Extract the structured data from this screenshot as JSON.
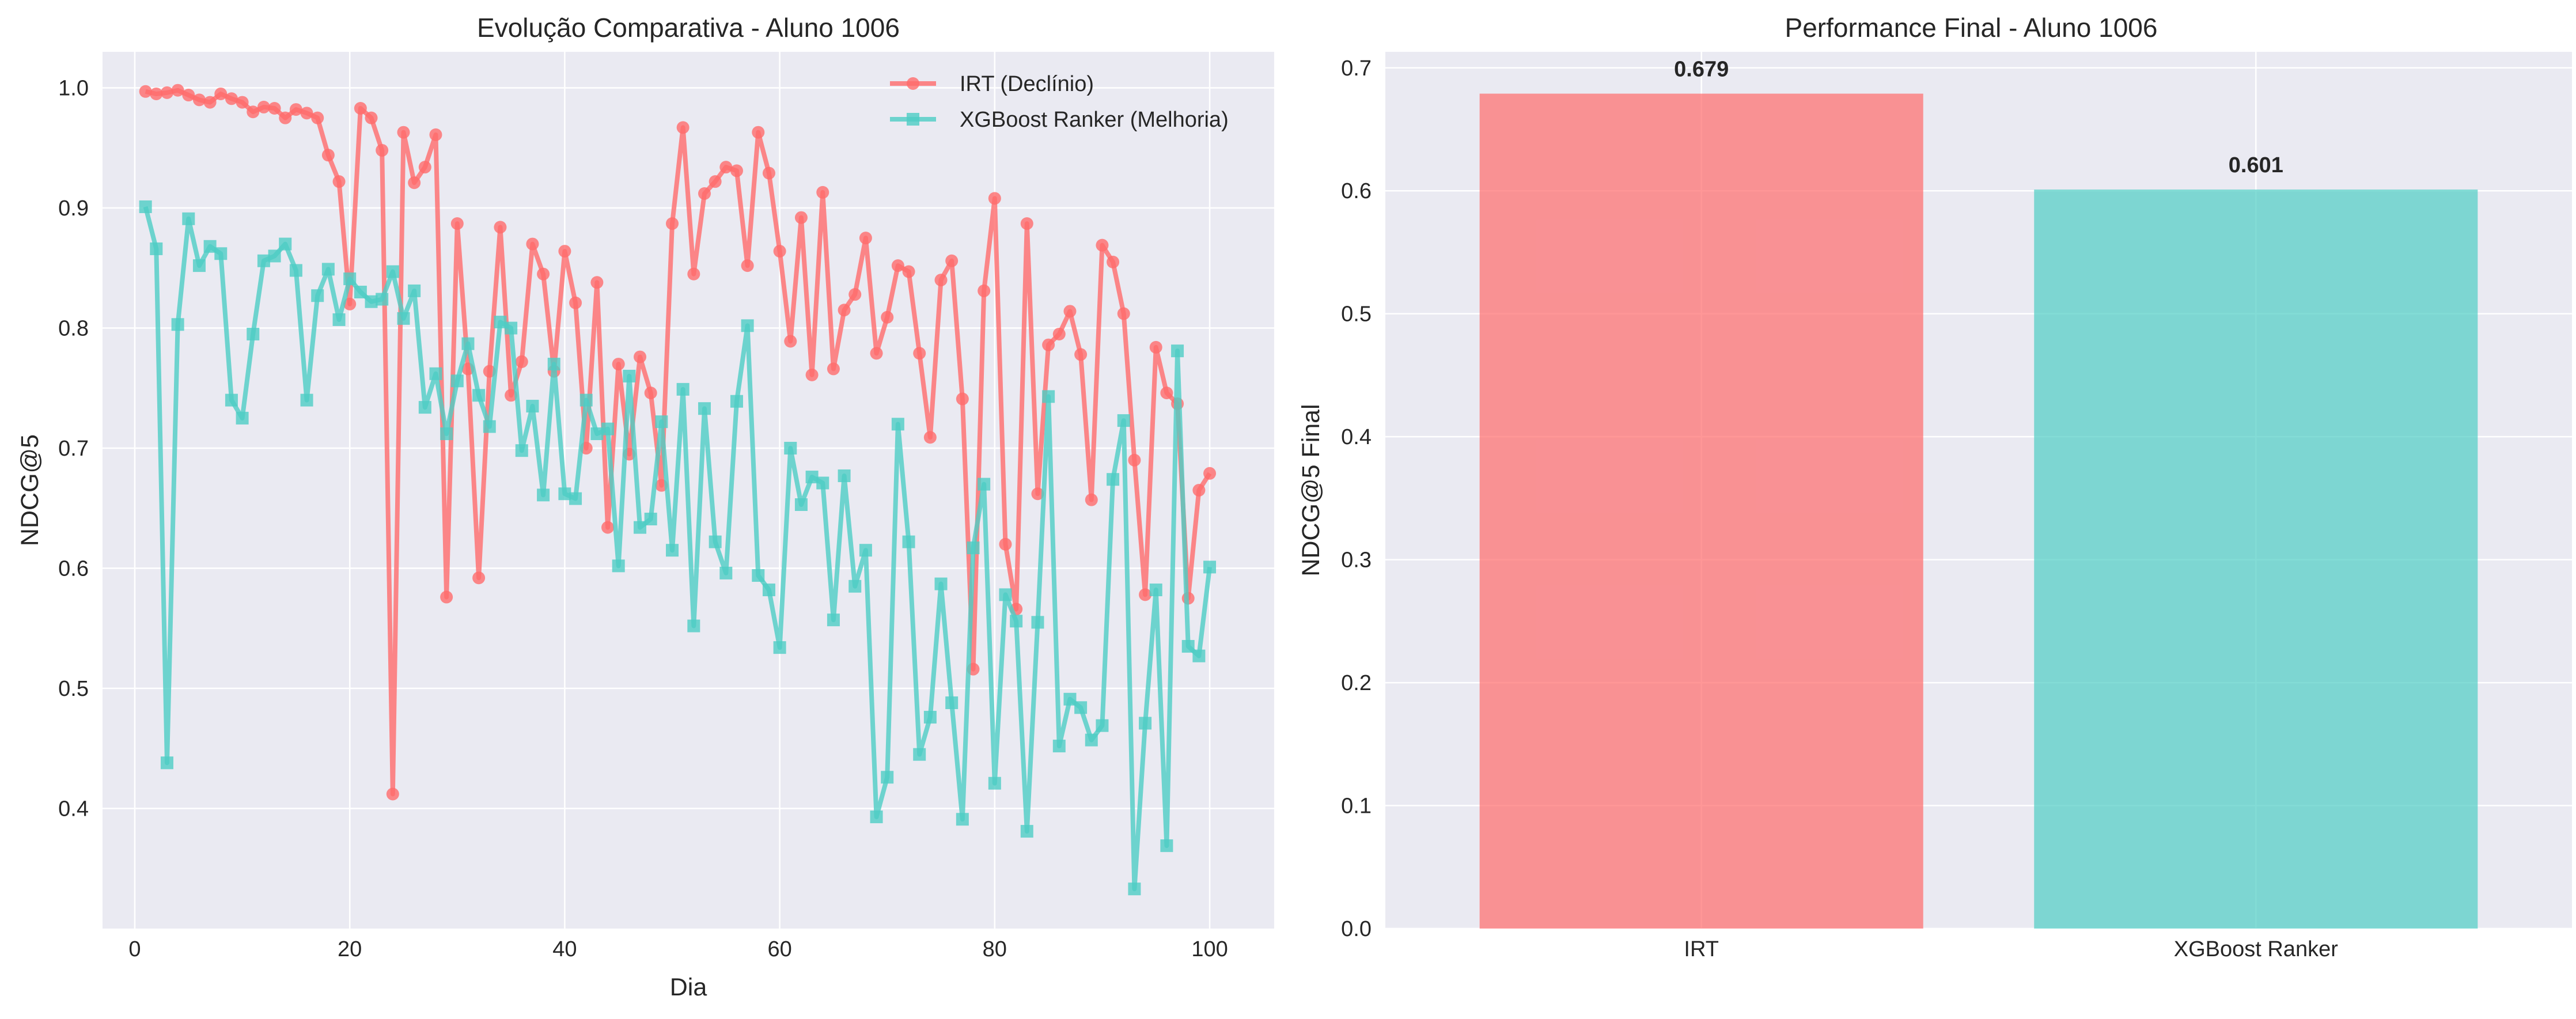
{
  "chart_data": [
    {
      "type": "line",
      "title": "Evolução Comparativa - Aluno 1006",
      "xlabel": "Dia",
      "ylabel": "NDCG@5",
      "xlim": [
        -3,
        106
      ],
      "ylim": [
        0.3,
        1.03
      ],
      "xticks": [
        0,
        20,
        40,
        60,
        80,
        100
      ],
      "yticks": [
        0.4,
        0.5,
        0.6,
        0.7,
        0.8,
        0.9,
        1.0
      ],
      "grid": true,
      "legend": "top-right",
      "x": [
        1,
        2,
        3,
        4,
        5,
        6,
        7,
        8,
        9,
        10,
        11,
        12,
        13,
        14,
        15,
        16,
        17,
        18,
        19,
        20,
        21,
        22,
        23,
        24,
        25,
        26,
        27,
        28,
        29,
        30,
        31,
        32,
        33,
        34,
        35,
        36,
        37,
        38,
        39,
        40,
        41,
        42,
        43,
        44,
        45,
        46,
        47,
        48,
        49,
        50,
        51,
        52,
        53,
        54,
        55,
        56,
        57,
        58,
        59,
        60,
        61,
        62,
        63,
        64,
        65,
        66,
        67,
        68,
        69,
        70,
        71,
        72,
        73,
        74,
        75,
        76,
        77,
        78,
        79,
        80,
        81,
        82,
        83,
        84,
        85,
        86,
        87,
        88,
        89,
        90,
        91,
        92,
        93,
        94,
        95,
        96,
        97,
        98,
        99,
        100
      ],
      "series": [
        {
          "name": "IRT (Declínio)",
          "color": "#FF6B6B",
          "marker": "circle",
          "values": [
            0.997,
            0.995,
            0.996,
            0.998,
            0.994,
            0.99,
            0.988,
            0.995,
            0.991,
            0.988,
            0.98,
            0.984,
            0.983,
            0.975,
            0.982,
            0.979,
            0.975,
            0.944,
            0.922,
            0.82,
            0.983,
            0.975,
            0.948,
            0.412,
            0.963,
            0.921,
            0.934,
            0.961,
            0.576,
            0.887,
            0.766,
            0.592,
            0.764,
            0.884,
            0.744,
            0.772,
            0.87,
            0.845,
            0.764,
            0.864,
            0.821,
            0.7,
            0.838,
            0.634,
            0.77,
            0.695,
            0.776,
            0.746,
            0.669,
            0.887,
            0.967,
            0.845,
            0.912,
            0.922,
            0.934,
            0.931,
            0.852,
            0.963,
            0.929,
            0.864,
            0.789,
            0.892,
            0.761,
            0.913,
            0.766,
            0.815,
            0.828,
            0.875,
            0.779,
            0.809,
            0.852,
            0.847,
            0.779,
            0.709,
            0.84,
            0.856,
            0.741,
            0.516,
            0.831,
            0.908,
            0.62,
            0.566,
            0.887,
            0.662,
            0.786,
            0.795,
            0.814,
            0.778,
            0.657,
            0.869,
            0.855,
            0.812,
            0.69,
            0.578,
            0.784,
            0.746,
            0.737,
            0.575,
            0.665,
            0.679
          ]
        },
        {
          "name": "XGBoost Ranker (Melhoria)",
          "color": "#4ECDC4",
          "marker": "square",
          "values": [
            0.901,
            0.866,
            0.438,
            0.803,
            0.891,
            0.852,
            0.868,
            0.862,
            0.74,
            0.725,
            0.795,
            0.856,
            0.86,
            0.87,
            0.848,
            0.74,
            0.827,
            0.849,
            0.807,
            0.841,
            0.83,
            0.822,
            0.824,
            0.847,
            0.808,
            0.831,
            0.734,
            0.762,
            0.712,
            0.756,
            0.787,
            0.744,
            0.718,
            0.805,
            0.8,
            0.698,
            0.735,
            0.661,
            0.77,
            0.662,
            0.658,
            0.74,
            0.712,
            0.716,
            0.602,
            0.76,
            0.634,
            0.641,
            0.722,
            0.615,
            0.749,
            0.552,
            0.733,
            0.622,
            0.596,
            0.739,
            0.802,
            0.594,
            0.582,
            0.534,
            0.7,
            0.653,
            0.676,
            0.671,
            0.557,
            0.677,
            0.585,
            0.615,
            0.393,
            0.426,
            0.72,
            0.622,
            0.445,
            0.476,
            0.587,
            0.488,
            0.391,
            0.617,
            0.67,
            0.421,
            0.578,
            0.556,
            0.381,
            0.555,
            0.743,
            0.452,
            0.491,
            0.484,
            0.457,
            0.469,
            0.674,
            0.723,
            0.333,
            0.471,
            0.582,
            0.369,
            0.781,
            0.535,
            0.527,
            0.601
          ]
        }
      ]
    },
    {
      "type": "bar",
      "title": "Performance Final - Aluno 1006",
      "xlabel": "",
      "ylabel": "NDCG@5 Final",
      "ylim": [
        0,
        0.713
      ],
      "yticks": [
        0.0,
        0.1,
        0.2,
        0.3,
        0.4,
        0.5,
        0.6,
        0.7
      ],
      "grid": true,
      "categories": [
        "IRT",
        "XGBoost Ranker"
      ],
      "values": [
        0.679,
        0.601
      ],
      "value_labels": [
        "0.679",
        "0.601"
      ],
      "colors": [
        "#FF6B6B",
        "#4ECDC4"
      ]
    }
  ]
}
